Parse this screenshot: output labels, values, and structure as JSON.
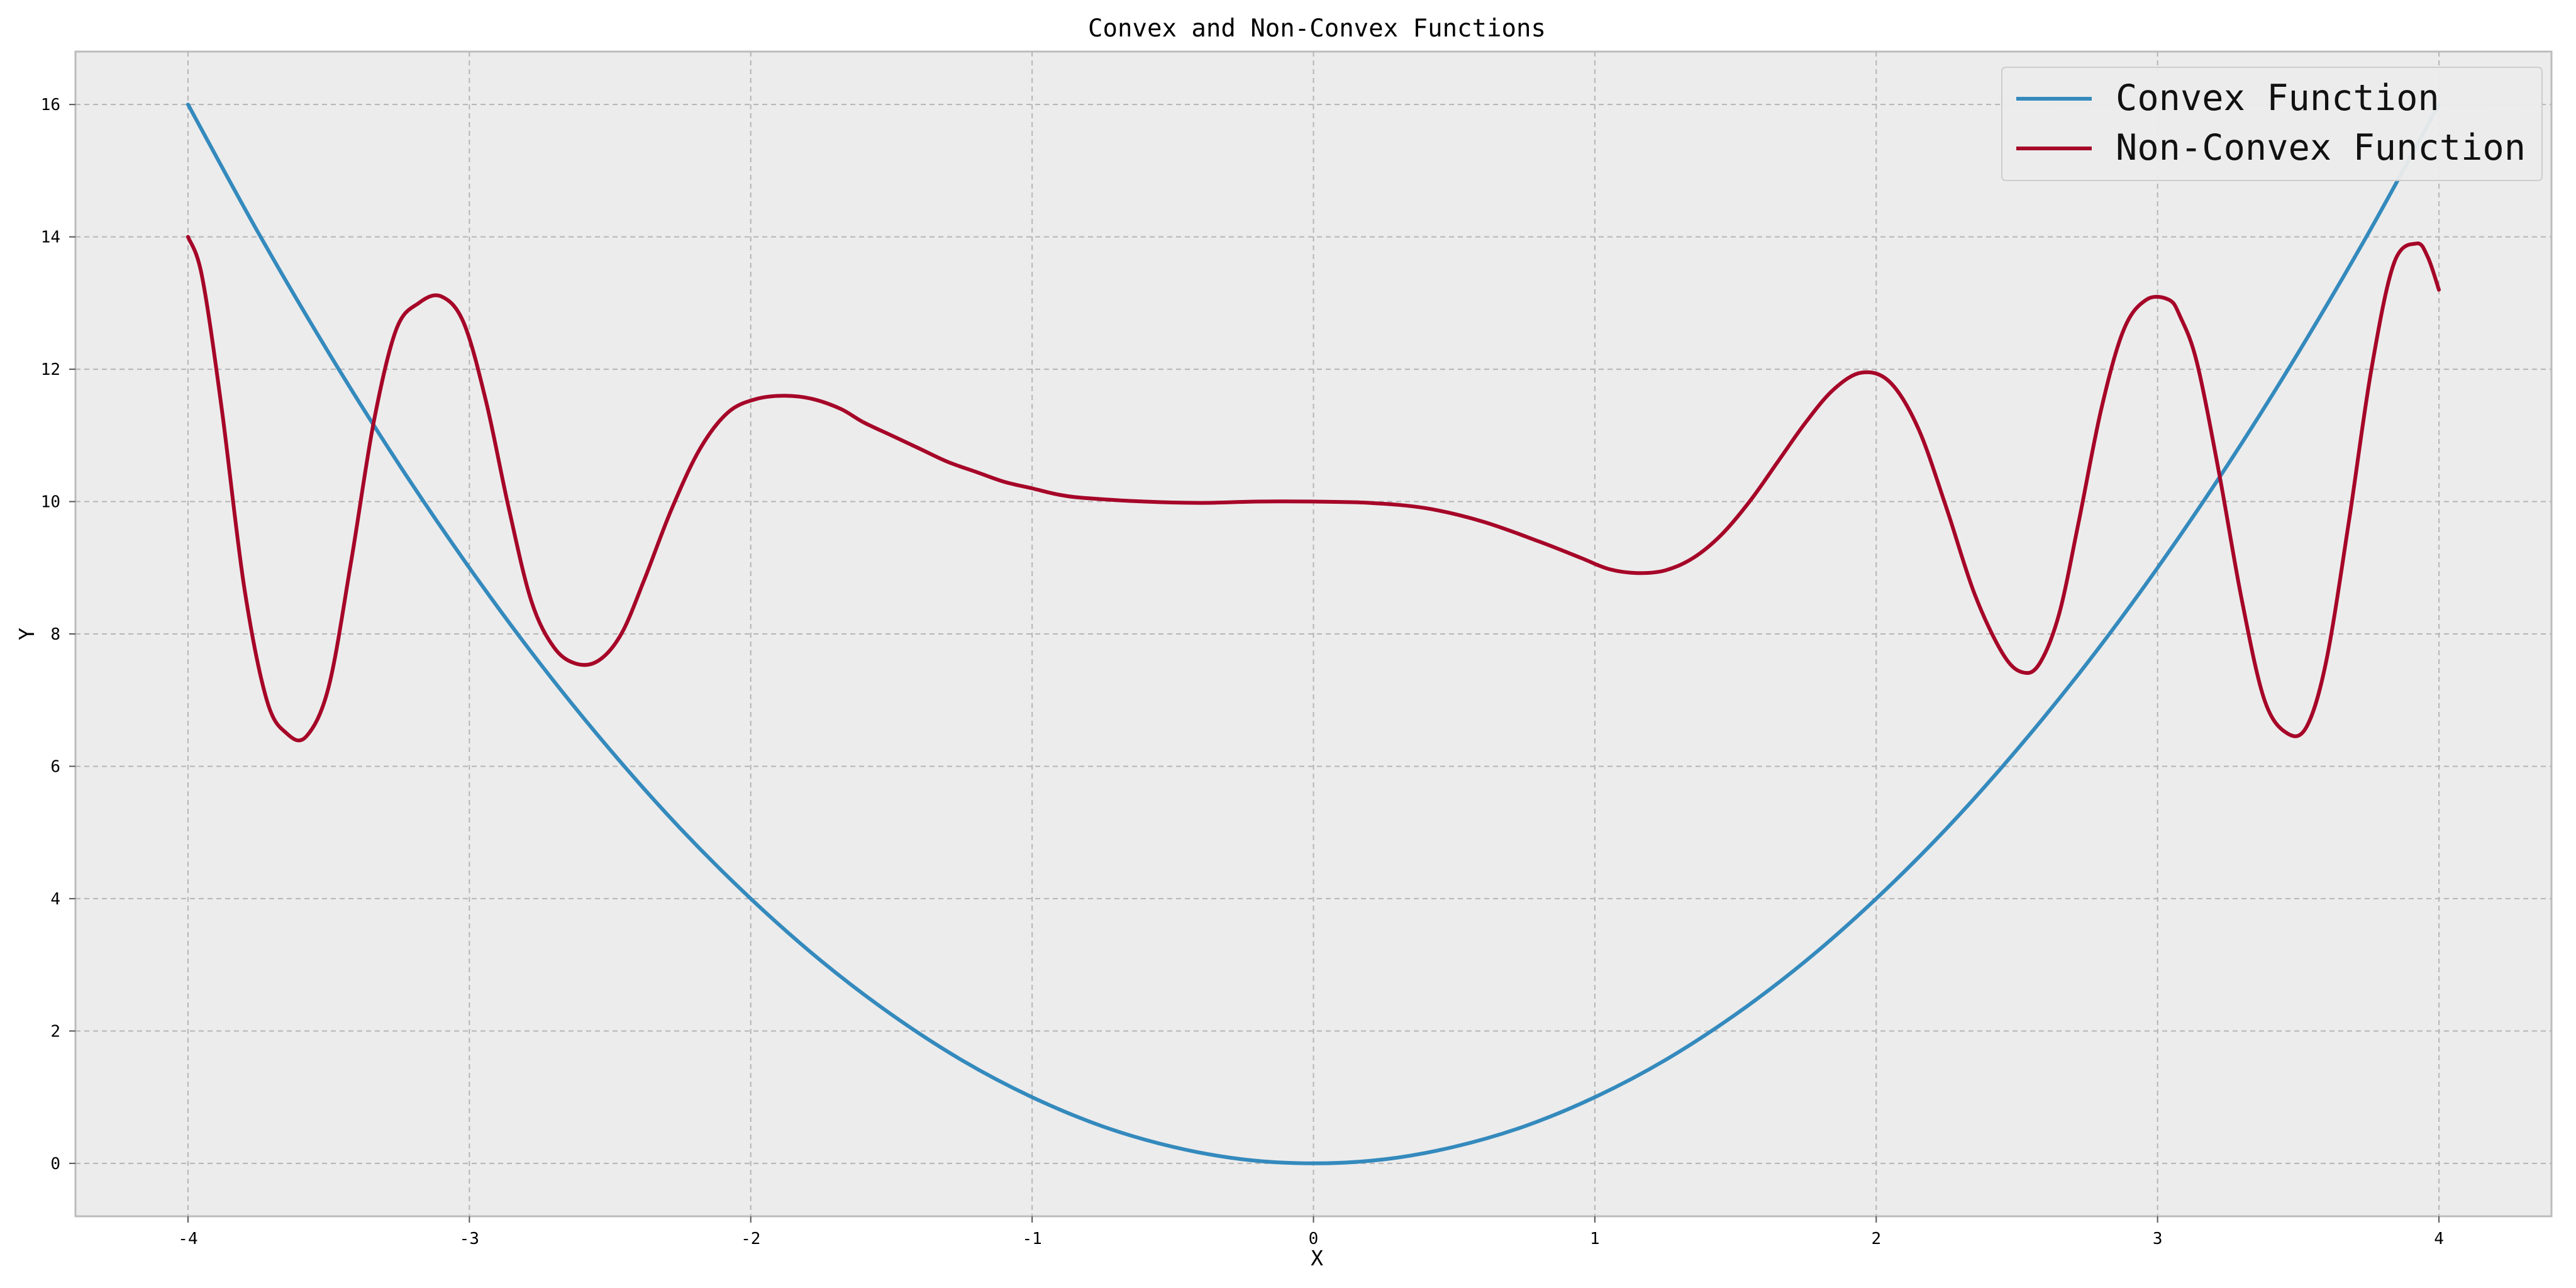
{
  "chart_data": {
    "type": "line",
    "title": "Convex and Non-Convex Functions",
    "xlabel": "X",
    "ylabel": "Y",
    "xlim": [
      -4.4,
      4.4
    ],
    "ylim": [
      -0.8,
      16.8
    ],
    "xticks": [
      -4,
      -3,
      -2,
      -1,
      0,
      1,
      2,
      3,
      4
    ],
    "yticks": [
      0,
      2,
      4,
      6,
      8,
      10,
      12,
      14,
      16
    ],
    "grid": true,
    "legend_position": "top-right",
    "background_color": "#ececec",
    "series": [
      {
        "name": "Convex Function",
        "color": "#348abd",
        "x": [
          -4.0,
          -3.75,
          -3.5,
          -3.25,
          -3.0,
          -2.75,
          -2.5,
          -2.25,
          -2.0,
          -1.75,
          -1.5,
          -1.25,
          -1.0,
          -0.75,
          -0.5,
          -0.25,
          0.0,
          0.25,
          0.5,
          0.75,
          1.0,
          1.25,
          1.5,
          1.75,
          2.0,
          2.25,
          2.5,
          2.75,
          3.0,
          3.25,
          3.5,
          3.75,
          4.0
        ],
        "y": [
          16.0,
          14.06,
          12.25,
          10.56,
          9.0,
          7.56,
          6.25,
          5.06,
          4.0,
          3.06,
          2.25,
          1.56,
          1.0,
          0.56,
          0.25,
          0.06,
          0.0,
          0.06,
          0.25,
          0.56,
          1.0,
          1.56,
          2.25,
          3.06,
          4.0,
          5.06,
          6.25,
          7.56,
          9.0,
          10.56,
          12.25,
          14.06,
          16.0
        ]
      },
      {
        "name": "Non-Convex Function",
        "color": "#a60628",
        "x": [
          -4.0,
          -3.95,
          -3.88,
          -3.8,
          -3.72,
          -3.65,
          -3.58,
          -3.5,
          -3.42,
          -3.34,
          -3.26,
          -3.18,
          -3.1,
          -3.02,
          -2.94,
          -2.86,
          -2.78,
          -2.7,
          -2.62,
          -2.54,
          -2.46,
          -2.38,
          -2.28,
          -2.18,
          -2.08,
          -1.98,
          -1.88,
          -1.78,
          -1.68,
          -1.6,
          -1.5,
          -1.4,
          -1.3,
          -1.2,
          -1.1,
          -1.0,
          -0.9,
          -0.8,
          -0.6,
          -0.4,
          -0.2,
          0.0,
          0.2,
          0.4,
          0.6,
          0.8,
          0.95,
          1.05,
          1.15,
          1.25,
          1.35,
          1.45,
          1.55,
          1.65,
          1.75,
          1.85,
          1.95,
          2.05,
          2.15,
          2.25,
          2.35,
          2.45,
          2.52,
          2.58,
          2.65,
          2.72,
          2.8,
          2.88,
          2.96,
          3.04,
          3.08,
          3.14,
          3.22,
          3.3,
          3.38,
          3.46,
          3.53,
          3.6,
          3.68,
          3.76,
          3.84,
          3.92,
          3.96,
          4.0
        ],
        "y": [
          14.0,
          13.4,
          11.4,
          8.7,
          7.0,
          6.5,
          6.45,
          7.2,
          9.1,
          11.2,
          12.6,
          13.0,
          13.1,
          12.7,
          11.5,
          9.9,
          8.5,
          7.8,
          7.55,
          7.6,
          8.0,
          8.8,
          9.9,
          10.8,
          11.35,
          11.55,
          11.6,
          11.55,
          11.4,
          11.2,
          11.0,
          10.8,
          10.6,
          10.45,
          10.3,
          10.2,
          10.1,
          10.05,
          10.0,
          9.98,
          10.0,
          10.0,
          9.98,
          9.9,
          9.7,
          9.4,
          9.15,
          8.98,
          8.92,
          8.96,
          9.15,
          9.5,
          10.0,
          10.6,
          11.2,
          11.7,
          11.95,
          11.8,
          11.1,
          9.9,
          8.6,
          7.7,
          7.42,
          7.55,
          8.3,
          9.7,
          11.4,
          12.6,
          13.05,
          13.05,
          12.8,
          12.1,
          10.4,
          8.5,
          7.0,
          6.5,
          6.6,
          7.6,
          9.7,
          12.0,
          13.6,
          13.9,
          13.7,
          13.2
        ]
      }
    ]
  }
}
